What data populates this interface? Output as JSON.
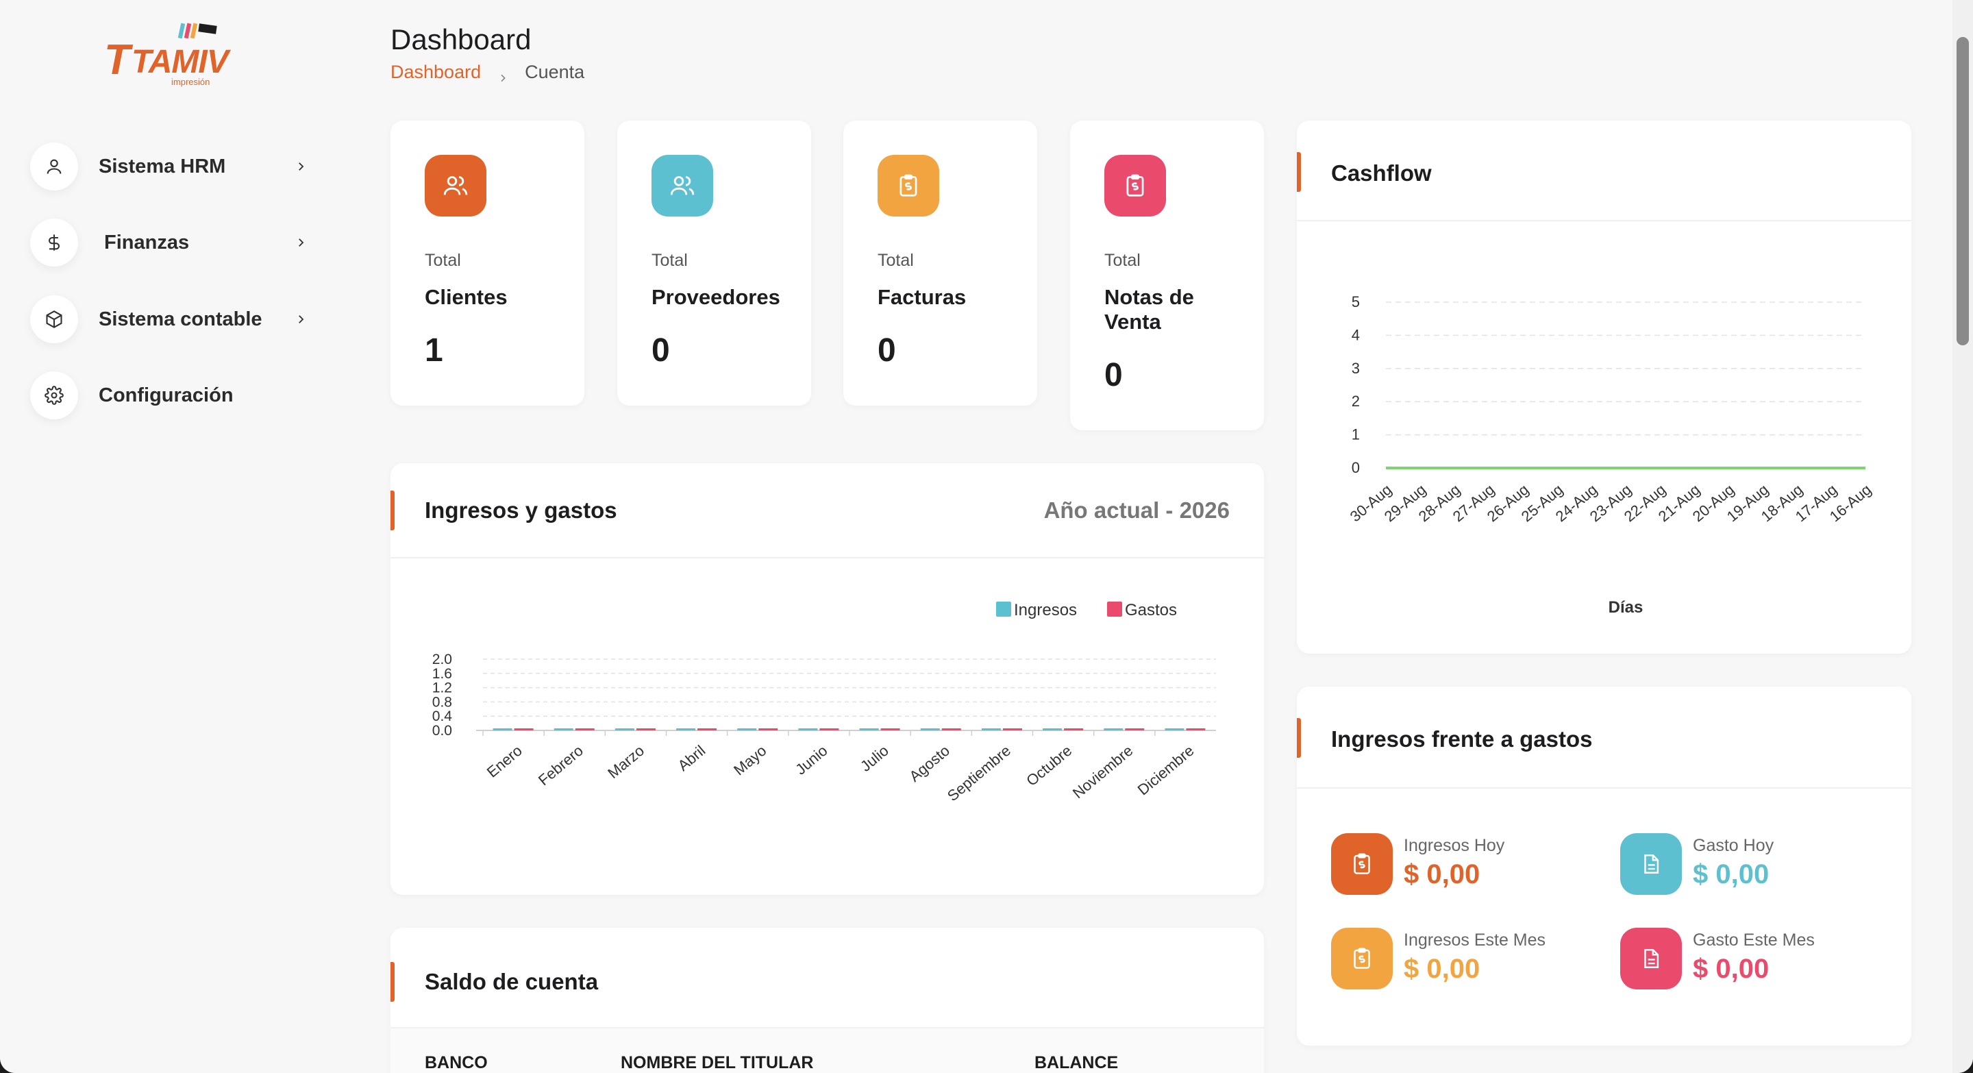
{
  "app": {
    "logo_text": "TAMIV",
    "logo_subtext": "impresión"
  },
  "sidebar": {
    "items": [
      {
        "label": "Sistema HRM",
        "icon": "user-icon",
        "has_chevron": true
      },
      {
        "label": "Finanzas",
        "icon": "dollar-icon",
        "has_chevron": true
      },
      {
        "label": "Sistema contable",
        "icon": "box-icon",
        "has_chevron": true
      },
      {
        "label": "Configuración",
        "icon": "gear-icon",
        "has_chevron": false
      }
    ]
  },
  "header": {
    "title": "Dashboard",
    "breadcrumb": {
      "link": "Dashboard",
      "current": "Cuenta"
    }
  },
  "stats": [
    {
      "kicker": "Total",
      "label": "Clientes",
      "value": "1",
      "color": "#e0642a",
      "icon": "users-icon"
    },
    {
      "kicker": "Total",
      "label": "Proveedores",
      "value": "0",
      "color": "#5cc0d0",
      "icon": "users-icon"
    },
    {
      "kicker": "Total",
      "label": "Facturas",
      "value": "0",
      "color": "#f2a440",
      "icon": "invoice-icon"
    },
    {
      "kicker": "Total",
      "label_line1": "Notas de",
      "label_line2": "Venta",
      "value": "0",
      "color": "#ea4a6c",
      "icon": "invoice-icon"
    }
  ],
  "income_expense": {
    "title": "Ingresos y gastos",
    "year_label": "Año actual - 2026"
  },
  "account_balance": {
    "title": "Saldo de cuenta",
    "columns": [
      "BANCO",
      "NOMBRE DEL TITULAR",
      "BALANCE"
    ]
  },
  "cashflow": {
    "title": "Cashflow"
  },
  "income_vs_expense": {
    "title": "Ingresos frente a gastos",
    "items": [
      {
        "label": "Ingresos Hoy",
        "value": "$ 0,00",
        "color": "#e0642a",
        "icon": "invoice-icon"
      },
      {
        "label": "Gasto Hoy",
        "value": "$ 0,00",
        "color": "#5cc0d0",
        "icon": "document-icon"
      },
      {
        "label": "Ingresos Este Mes",
        "value": "$ 0,00",
        "color": "#f2a440",
        "icon": "invoice-icon"
      },
      {
        "label": "Gasto Este Mes",
        "value": "$ 0,00",
        "color": "#ea4a6c",
        "icon": "document-icon"
      }
    ]
  },
  "colors": {
    "accent": "#e0642a",
    "ingresos": "#5cc0d0",
    "gastos": "#ea4a6c",
    "cashflow_line": "#7ed56f"
  },
  "chart_data": [
    {
      "type": "bar",
      "categories": [
        "Enero",
        "Febrero",
        "Marzo",
        "Abril",
        "Mayo",
        "Junio",
        "Julio",
        "Agosto",
        "Septiembre",
        "Octubre",
        "Noviembre",
        "Diciembre"
      ],
      "series": [
        {
          "name": "Ingresos",
          "values": [
            0,
            0,
            0,
            0,
            0,
            0,
            0,
            0,
            0,
            0,
            0,
            0
          ]
        },
        {
          "name": "Gastos",
          "values": [
            0,
            0,
            0,
            0,
            0,
            0,
            0,
            0,
            0,
            0,
            0,
            0
          ]
        }
      ],
      "yticks": [
        "0.0",
        "0.4",
        "0.8",
        "1.2",
        "1.6",
        "2.0"
      ],
      "ylim": [
        0,
        2.0
      ],
      "legend": "top-right",
      "grid": true
    },
    {
      "type": "line",
      "x": [
        "30-Aug",
        "29-Aug",
        "28-Aug",
        "27-Aug",
        "26-Aug",
        "25-Aug",
        "24-Aug",
        "23-Aug",
        "22-Aug",
        "21-Aug",
        "20-Aug",
        "19-Aug",
        "18-Aug",
        "17-Aug",
        "16-Aug"
      ],
      "series": [
        {
          "values": [
            0,
            0,
            0,
            0,
            0,
            0,
            0,
            0,
            0,
            0,
            0,
            0,
            0,
            0,
            0
          ]
        }
      ],
      "yticks": [
        "0",
        "1",
        "2",
        "3",
        "4",
        "5"
      ],
      "ylim": [
        0,
        5
      ],
      "xlabel": "Días",
      "grid": true
    }
  ]
}
